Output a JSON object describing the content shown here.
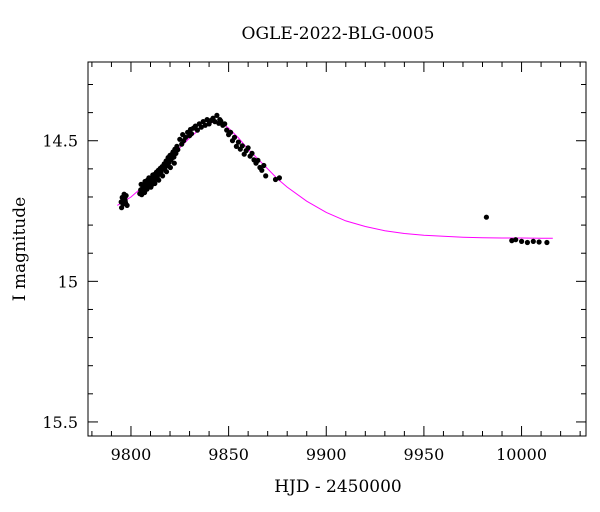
{
  "chart_data": {
    "type": "scatter",
    "title": "OGLE-2022-BLG-0005",
    "xlabel": "HJD - 2450000",
    "ylabel": "I magnitude",
    "xlim": [
      9778,
      10033
    ],
    "ylim": [
      15.55,
      14.22
    ],
    "y_inverted": true,
    "grid": false,
    "x_major_ticks": [
      9800,
      9850,
      9900,
      9950,
      10000
    ],
    "x_tick_labels": [
      "9800",
      "9850",
      "9900",
      "9950",
      "10000"
    ],
    "x_minor_step": 10,
    "y_major_ticks": [
      14.5,
      15,
      15.5
    ],
    "y_tick_labels": [
      "14.5",
      "15",
      "15.5"
    ],
    "y_minor_step": 0.1,
    "series": [
      {
        "type": "scatter",
        "color": "#000000",
        "x": [
          9795.0,
          9795.5,
          9796.0,
          9796.5,
          9797.0,
          9797.5,
          9798.0,
          9795.2,
          9796.8,
          9797.2,
          9804.5,
          9805.0,
          9805.5,
          9806.0,
          9806.5,
          9807.0,
          9807.5,
          9808.0,
          9808.5,
          9809.0,
          9809.5,
          9810.0,
          9810.5,
          9811.0,
          9811.5,
          9812.0,
          9812.5,
          9813.0,
          9813.5,
          9814.0,
          9814.5,
          9815.0,
          9815.5,
          9816.0,
          9816.5,
          9817.0,
          9817.5,
          9818.0,
          9818.5,
          9819.0,
          9819.5,
          9820.0,
          9820.5,
          9821.0,
          9821.5,
          9822.0,
          9822.5,
          9823.0,
          9823.5,
          9824.0,
          9805.2,
          9806.2,
          9807.2,
          9808.2,
          9809.2,
          9810.2,
          9811.2,
          9812.2,
          9813.2,
          9814.2,
          9815.2,
          9816.2,
          9817.2,
          9818.2,
          9819.2,
          9820.2,
          9821.2,
          9822.2,
          9825.0,
          9826.0,
          9826.5,
          9827.0,
          9828.0,
          9829.0,
          9830.0,
          9830.5,
          9831.0,
          9832.0,
          9833.0,
          9834.0,
          9835.0,
          9836.0,
          9837.0,
          9838.0,
          9839.0,
          9840.0,
          9841.0,
          9842.0,
          9843.0,
          9844.0,
          9845.0,
          9845.5,
          9846.0,
          9847.0,
          9848.0,
          9849.0,
          9850.0,
          9851.0,
          9852.0,
          9853.0,
          9854.0,
          9855.0,
          9856.0,
          9857.0,
          9858.0,
          9859.0,
          9860.0,
          9861.0,
          9862.0,
          9863.0,
          9864.0,
          9865.0,
          9866.0,
          9867.0,
          9868.0,
          9869.0,
          9874.0,
          9876.0,
          9982.0,
          9995.0,
          9997.0,
          10000.0,
          10003.0,
          10006.0,
          10009.0,
          10013.0
        ],
        "y": [
          14.718,
          14.702,
          14.725,
          14.69,
          14.712,
          14.695,
          14.73,
          14.738,
          14.705,
          14.72,
          14.688,
          14.675,
          14.692,
          14.668,
          14.66,
          14.684,
          14.652,
          14.67,
          14.64,
          14.662,
          14.648,
          14.636,
          14.658,
          14.63,
          14.645,
          14.62,
          14.638,
          14.612,
          14.628,
          14.605,
          14.618,
          14.598,
          14.61,
          14.592,
          14.6,
          14.582,
          14.595,
          14.572,
          14.588,
          14.56,
          14.578,
          14.552,
          14.568,
          14.548,
          14.54,
          14.558,
          14.53,
          14.545,
          14.52,
          14.532,
          14.655,
          14.68,
          14.645,
          14.672,
          14.632,
          14.665,
          14.622,
          14.652,
          14.618,
          14.64,
          14.6,
          14.625,
          14.585,
          14.61,
          14.572,
          14.595,
          14.56,
          14.58,
          14.495,
          14.512,
          14.478,
          14.5,
          14.488,
          14.47,
          14.482,
          14.46,
          14.475,
          14.455,
          14.448,
          14.462,
          14.44,
          14.452,
          14.432,
          14.445,
          14.425,
          14.44,
          14.428,
          14.42,
          14.432,
          14.41,
          14.438,
          14.425,
          14.43,
          14.445,
          14.44,
          14.462,
          14.478,
          14.47,
          14.5,
          14.488,
          14.52,
          14.505,
          14.53,
          14.518,
          14.548,
          14.535,
          14.525,
          14.555,
          14.545,
          14.568,
          14.58,
          14.57,
          14.595,
          14.605,
          14.588,
          14.625,
          14.638,
          14.632,
          14.772,
          14.855,
          14.852,
          14.858,
          14.862,
          14.858,
          14.86,
          14.862
        ]
      },
      {
        "type": "line",
        "color": "#ff00ff",
        "x": [
          9793,
          9800,
          9805,
          9810,
          9815,
          9820,
          9825,
          9830,
          9835,
          9840,
          9843,
          9846,
          9850,
          9855,
          9860,
          9865,
          9870,
          9875,
          9880,
          9890,
          9900,
          9910,
          9920,
          9930,
          9940,
          9950,
          9960,
          9970,
          9980,
          9990,
          10000,
          10010,
          10016
        ],
        "y": [
          14.73,
          14.7,
          14.67,
          14.635,
          14.6,
          14.565,
          14.525,
          14.49,
          14.46,
          14.44,
          14.43,
          14.435,
          14.455,
          14.49,
          14.53,
          14.565,
          14.6,
          14.635,
          14.665,
          14.715,
          14.755,
          14.785,
          14.805,
          14.82,
          14.83,
          14.836,
          14.84,
          14.843,
          14.845,
          14.846,
          14.846,
          14.847,
          14.847
        ]
      }
    ]
  }
}
